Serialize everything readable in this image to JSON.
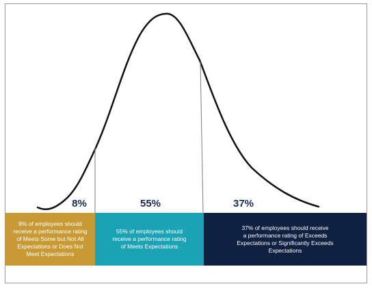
{
  "bands": [
    {
      "percent": "8%",
      "text": "8% of employees should\nreceive a performance rating\nof Meets Some but Not All\nExpectations or Does Not\nMeet Expectations",
      "color": "#c89a35",
      "text_color": "#ffffff"
    },
    {
      "percent": "55%",
      "text": "55% of employees should\nreceive a performance rating\nof Meets Expectations",
      "color": "#1ba3b5",
      "text_color": "#ffffff"
    },
    {
      "percent": "37%",
      "text": "37% of employees should receive\na performance rating of Exceeds\nExpectations or Significantly Exceeds\nExpectations",
      "color": "#0f2040",
      "text_color": "#ffffff"
    }
  ],
  "colors": {
    "curve": "#111111",
    "divider": "#7a7a7a",
    "percent_text": "#1b2d4f"
  }
}
